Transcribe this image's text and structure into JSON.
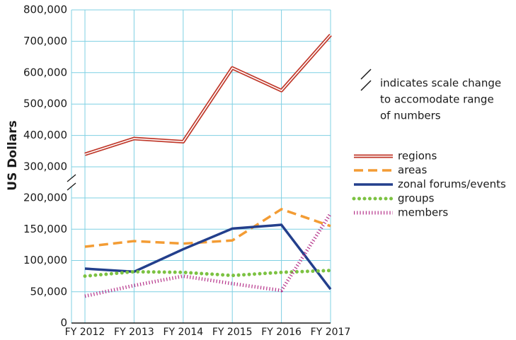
{
  "chart_data": {
    "type": "line",
    "y_label": "US Dollars",
    "annotation": [
      "indicates scale change",
      "to accomodate range",
      "of numbers"
    ],
    "categories": [
      "FY 2012",
      "FY 2013",
      "FY 2014",
      "FY 2015",
      "FY 2016",
      "FY 2017"
    ],
    "broken_axis": true,
    "ylim_lower": [
      0,
      200000
    ],
    "ylim_upper": [
      300000,
      800000
    ],
    "yticks": [
      {
        "value": 0,
        "label": "0"
      },
      {
        "value": 50000,
        "label": "50,000"
      },
      {
        "value": 100000,
        "label": "100,000"
      },
      {
        "value": 150000,
        "label": "150,000"
      },
      {
        "value": 200000,
        "label": "200,000"
      },
      {
        "value": 300000,
        "label": "300,000"
      },
      {
        "value": 400000,
        "label": "400,000"
      },
      {
        "value": 500000,
        "label": "500,000"
      },
      {
        "value": 600000,
        "label": "600,000"
      },
      {
        "value": 700000,
        "label": "700,000"
      },
      {
        "value": 800000,
        "label": "800,000"
      }
    ],
    "grid": true,
    "series": [
      {
        "name": "regions",
        "color": "#c0392b",
        "style": "double",
        "values": [
          340000,
          390000,
          380000,
          615000,
          543000,
          720000
        ]
      },
      {
        "name": "areas",
        "color": "#f39c34",
        "style": "dashed",
        "values": [
          122000,
          131000,
          127000,
          132000,
          182000,
          155000
        ]
      },
      {
        "name": "zonal forums/events",
        "color": "#233f8c",
        "style": "solid",
        "values": [
          87000,
          82000,
          118000,
          151000,
          157000,
          54000
        ]
      },
      {
        "name": "groups",
        "color": "#7cc242",
        "style": "dotted",
        "values": [
          75000,
          82000,
          81000,
          76000,
          81000,
          84000
        ]
      },
      {
        "name": "members",
        "color": "#b5338a",
        "style": "starred",
        "values": [
          43000,
          60000,
          75000,
          63000,
          52000,
          175000
        ]
      }
    ]
  }
}
